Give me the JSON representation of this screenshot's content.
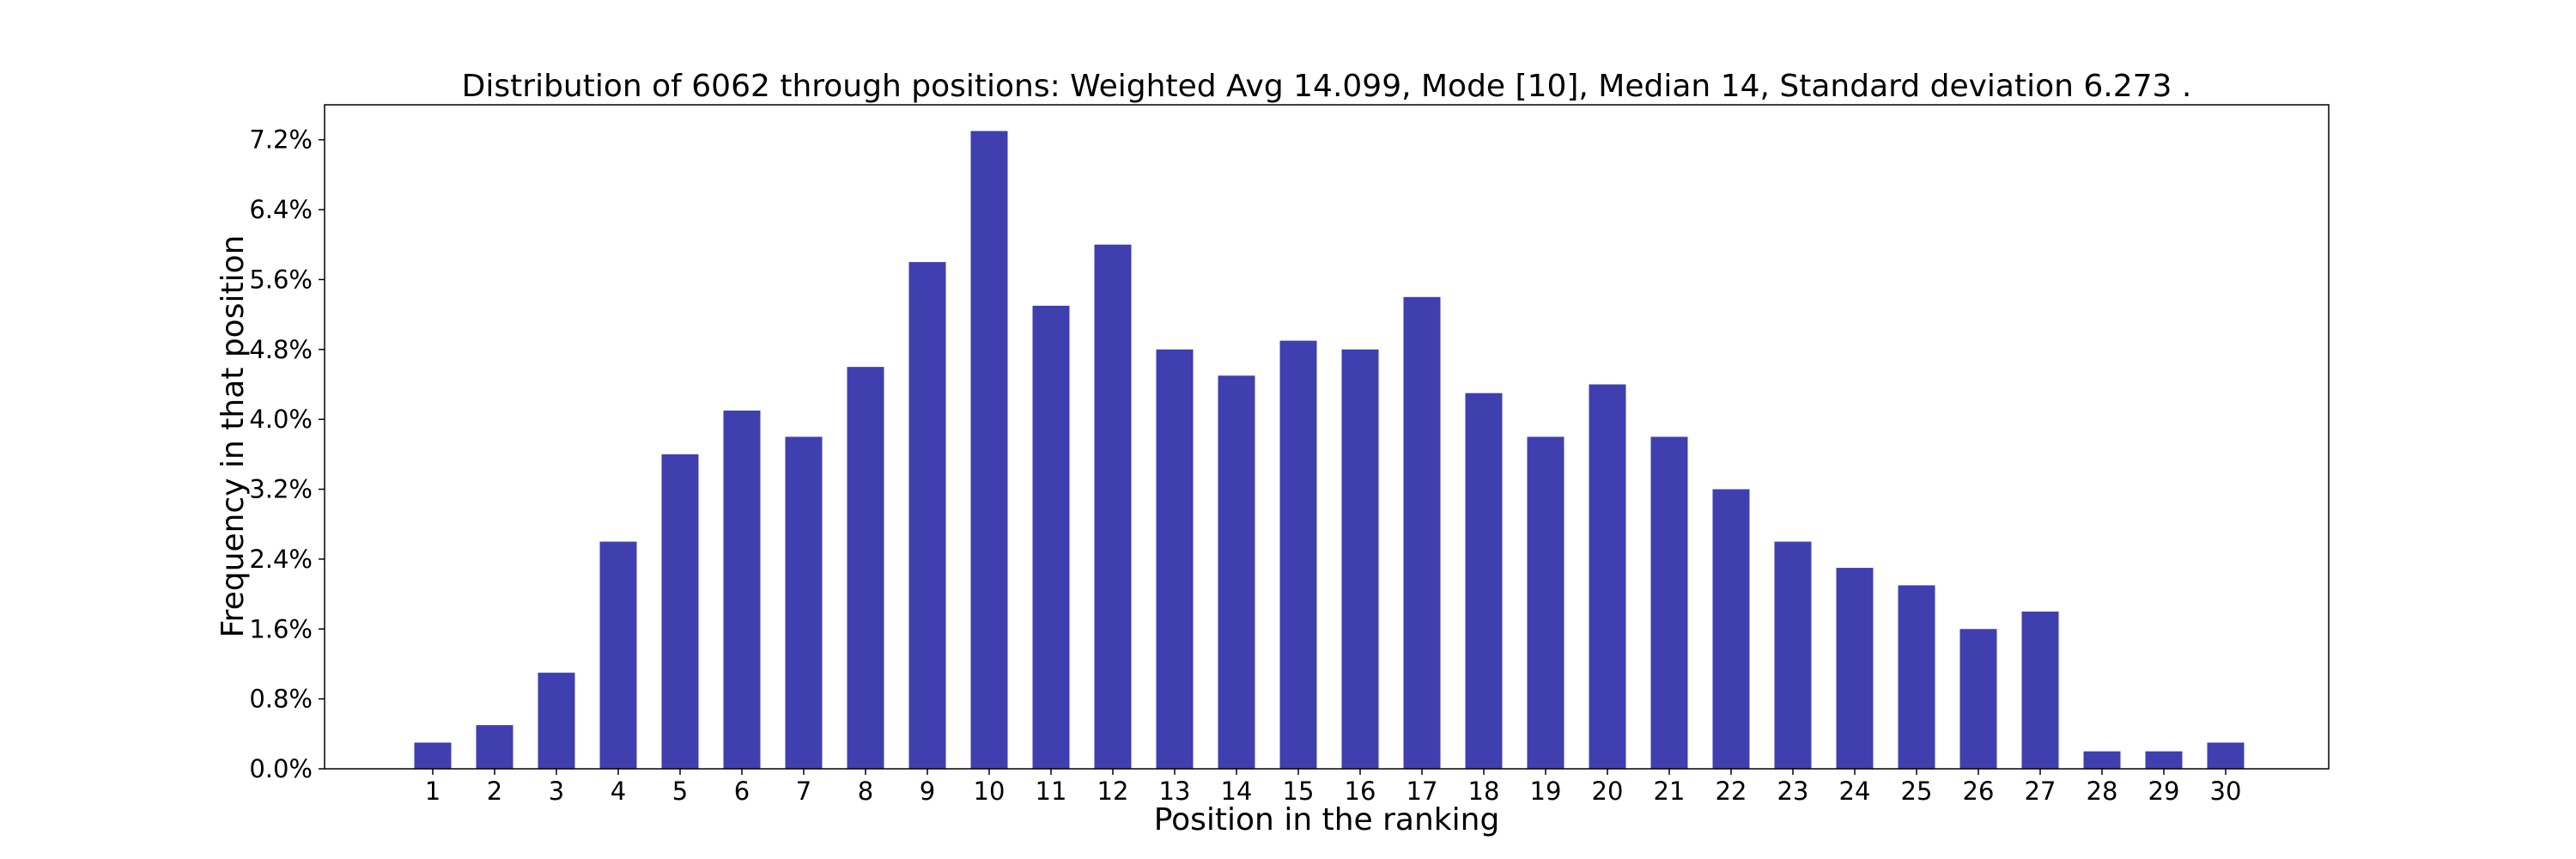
{
  "chart_data": {
    "type": "bar",
    "title": "Distribution of 6062 through positions: Weighted Avg 14.099, Mode [10], Median 14, Standard deviation 6.273 .",
    "xlabel": "Position in the ranking",
    "ylabel": "Frequency in that position",
    "categories": [
      "1",
      "2",
      "3",
      "4",
      "5",
      "6",
      "7",
      "8",
      "9",
      "10",
      "11",
      "12",
      "13",
      "14",
      "15",
      "16",
      "17",
      "18",
      "19",
      "20",
      "21",
      "22",
      "23",
      "24",
      "25",
      "26",
      "27",
      "28",
      "29",
      "30"
    ],
    "values": [
      0.3,
      0.5,
      1.1,
      2.6,
      3.6,
      4.1,
      3.8,
      4.6,
      5.8,
      7.3,
      5.3,
      6.0,
      4.8,
      4.5,
      4.9,
      4.8,
      5.4,
      4.3,
      3.8,
      4.4,
      3.8,
      3.2,
      2.6,
      2.3,
      2.1,
      1.6,
      1.8,
      0.2,
      0.2,
      0.3
    ],
    "value_unit": "%",
    "ylim": [
      0,
      7.6
    ],
    "yticks": [
      0.0,
      0.8,
      1.6,
      2.4,
      3.2,
      4.0,
      4.8,
      5.6,
      6.4,
      7.2
    ],
    "ytick_labels": [
      "0.0%",
      "0.8%",
      "1.6%",
      "2.4%",
      "3.2%",
      "4.0%",
      "4.8%",
      "5.6%",
      "6.4%",
      "7.2%"
    ],
    "grid": false,
    "legend": "none",
    "bar_color": "#3f3fb0"
  }
}
